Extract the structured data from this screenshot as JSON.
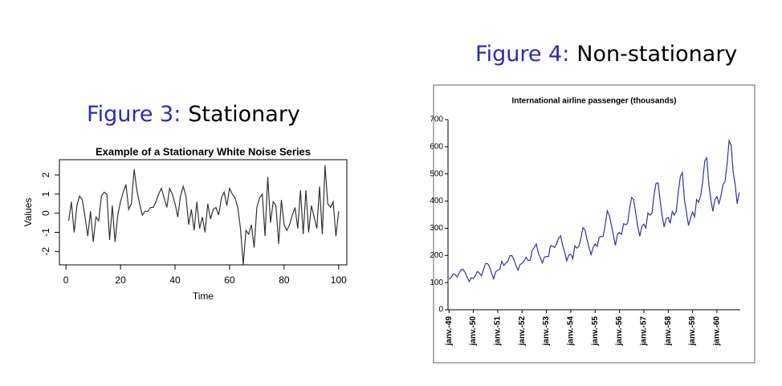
{
  "chart_data": [
    {
      "type": "line",
      "caption_label": "Figure 3:",
      "caption": "Stationary",
      "title": "Example of a Stationary White Noise Series",
      "x_label": "Time",
      "y_label": "Values",
      "color": "#333333",
      "x": [
        1,
        2,
        3,
        4,
        5,
        6,
        7,
        8,
        9,
        10,
        11,
        12,
        13,
        14,
        15,
        16,
        17,
        18,
        19,
        20,
        21,
        22,
        23,
        24,
        25,
        26,
        27,
        28,
        29,
        30,
        31,
        32,
        33,
        34,
        35,
        36,
        37,
        38,
        39,
        40,
        41,
        42,
        43,
        44,
        45,
        46,
        47,
        48,
        49,
        50,
        51,
        52,
        53,
        54,
        55,
        56,
        57,
        58,
        59,
        60,
        61,
        62,
        63,
        64,
        65,
        66,
        67,
        68,
        69,
        70,
        71,
        72,
        73,
        74,
        75,
        76,
        77,
        78,
        79,
        80,
        81,
        82,
        83,
        84,
        85,
        86,
        87,
        88,
        89,
        90,
        91,
        92,
        93,
        94,
        95,
        96,
        97,
        98,
        99,
        100
      ],
      "values": [
        -0.4,
        0.6,
        -1.0,
        0.4,
        0.9,
        0.7,
        -0.2,
        -1.2,
        0.1,
        -1.5,
        -0.2,
        -0.4,
        0.9,
        1.1,
        1.0,
        -1.4,
        0.4,
        -1.5,
        -0.1,
        0.6,
        1.1,
        1.5,
        0.2,
        0.5,
        2.3,
        1.2,
        0.5,
        -0.1,
        0.1,
        0.1,
        0.3,
        0.3,
        0.6,
        1.0,
        1.3,
        0.8,
        0.3,
        1.3,
        1.0,
        0.5,
        -0.2,
        0.9,
        1.4,
        0.9,
        -0.6,
        0.2,
        -0.9,
        0.6,
        -0.8,
        -0.2,
        -1.0,
        0.5,
        -0.3,
        0.2,
        0.3,
        -0.1,
        0.8,
        1.1,
        0.4,
        1.3,
        1.0,
        0.8,
        0.3,
        -0.8,
        -2.7,
        -0.9,
        -1.1,
        -0.6,
        -1.8,
        0.3,
        0.8,
        1.0,
        -1.2,
        1.9,
        -0.5,
        0.6,
        0.4,
        -1.6,
        0.7,
        -0.6,
        -0.9,
        -0.6,
        -0.1,
        0.3,
        -0.8,
        1.2,
        -1.1,
        1.2,
        -1.0,
        0.4,
        -0.2,
        -0.8,
        1.4,
        -1.1,
        2.5,
        0.5,
        0.3,
        0.6,
        -1.2,
        0.1
      ],
      "xlim": [
        -2.4,
        103
      ],
      "xticks": [
        0,
        20,
        40,
        60,
        80,
        100
      ],
      "ylim": [
        -2.7,
        2.8
      ],
      "yticks": [
        -2,
        -1,
        0,
        1,
        2
      ]
    },
    {
      "type": "line",
      "caption_label": "Figure 4:",
      "caption": "Non-stationary",
      "title": "International airline passenger (thousands)",
      "color": "#3333a0",
      "categories": [
        "janv.-49",
        null,
        null,
        null,
        null,
        null,
        null,
        null,
        null,
        null,
        null,
        null,
        "janv.-50",
        null,
        null,
        null,
        null,
        null,
        null,
        null,
        null,
        null,
        null,
        null,
        "janv.-51",
        null,
        null,
        null,
        null,
        null,
        null,
        null,
        null,
        null,
        null,
        null,
        "janv.-52",
        null,
        null,
        null,
        null,
        null,
        null,
        null,
        null,
        null,
        null,
        null,
        "janv.-53",
        null,
        null,
        null,
        null,
        null,
        null,
        null,
        null,
        null,
        null,
        null,
        "janv.-54",
        null,
        null,
        null,
        null,
        null,
        null,
        null,
        null,
        null,
        null,
        null,
        "janv.-55",
        null,
        null,
        null,
        null,
        null,
        null,
        null,
        null,
        null,
        null,
        null,
        "janv.-56",
        null,
        null,
        null,
        null,
        null,
        null,
        null,
        null,
        null,
        null,
        null,
        "janv.-57",
        null,
        null,
        null,
        null,
        null,
        null,
        null,
        null,
        null,
        null,
        null,
        "janv.-58",
        null,
        null,
        null,
        null,
        null,
        null,
        null,
        null,
        null,
        null,
        null,
        "janv.-59",
        null,
        null,
        null,
        null,
        null,
        null,
        null,
        null,
        null,
        null,
        null,
        "janv.-60",
        null,
        null,
        null,
        null,
        null,
        null,
        null,
        null,
        null,
        null,
        null
      ],
      "values": [
        112,
        118,
        132,
        129,
        121,
        135,
        148,
        148,
        136,
        119,
        104,
        118,
        115,
        126,
        141,
        135,
        125,
        149,
        170,
        170,
        158,
        133,
        114,
        140,
        145,
        150,
        178,
        163,
        172,
        178,
        199,
        199,
        184,
        162,
        146,
        166,
        171,
        180,
        193,
        181,
        183,
        218,
        230,
        242,
        209,
        191,
        172,
        194,
        196,
        196,
        236,
        235,
        229,
        243,
        264,
        272,
        237,
        211,
        180,
        201,
        204,
        188,
        235,
        227,
        234,
        264,
        302,
        293,
        259,
        229,
        203,
        229,
        242,
        233,
        267,
        269,
        270,
        315,
        364,
        347,
        312,
        274,
        237,
        278,
        284,
        277,
        317,
        313,
        318,
        374,
        413,
        405,
        355,
        306,
        271,
        306,
        315,
        301,
        356,
        348,
        355,
        422,
        465,
        467,
        404,
        347,
        305,
        336,
        340,
        318,
        362,
        348,
        363,
        435,
        491,
        505,
        404,
        359,
        310,
        337,
        360,
        342,
        406,
        396,
        420,
        472,
        548,
        559,
        463,
        407,
        362,
        405,
        417,
        391,
        419,
        461,
        472,
        535,
        622,
        606,
        508,
        461,
        390,
        432
      ],
      "ylim": [
        0,
        700
      ],
      "yticks": [
        0,
        100,
        200,
        300,
        400,
        500,
        600,
        700
      ]
    }
  ]
}
